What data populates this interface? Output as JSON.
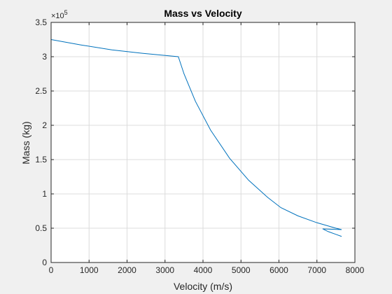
{
  "chart_data": {
    "type": "line",
    "title": "Mass vs Velocity",
    "xlabel": "Velocity (m/s)",
    "ylabel": "Mass (kg)",
    "xlim": [
      0,
      8000
    ],
    "ylim": [
      0,
      3.5
    ],
    "y_multiplier": "×10",
    "y_multiplier_exponent": "5",
    "xticks": [
      0,
      1000,
      2000,
      3000,
      4000,
      5000,
      6000,
      7000,
      8000
    ],
    "yticks": [
      0,
      0.5,
      1,
      1.5,
      2,
      2.5,
      3,
      3.5
    ],
    "ytick_labels": [
      "0",
      "0.5",
      "1",
      "1.5",
      "2",
      "2.5",
      "3",
      "3.5"
    ],
    "grid": true,
    "series": [
      {
        "color": "#0072bd",
        "x": [
          0,
          800,
          1600,
          2400,
          3350,
          3500,
          3800,
          4200,
          4700,
          5200,
          5700,
          6050,
          6500,
          7000,
          7500,
          7650,
          7150,
          7300,
          7500,
          7650
        ],
        "y": [
          3.25,
          3.17,
          3.1,
          3.05,
          3.0,
          2.75,
          2.35,
          1.93,
          1.52,
          1.2,
          0.95,
          0.8,
          0.68,
          0.58,
          0.5,
          0.48,
          0.49,
          0.45,
          0.41,
          0.38
        ]
      }
    ]
  }
}
